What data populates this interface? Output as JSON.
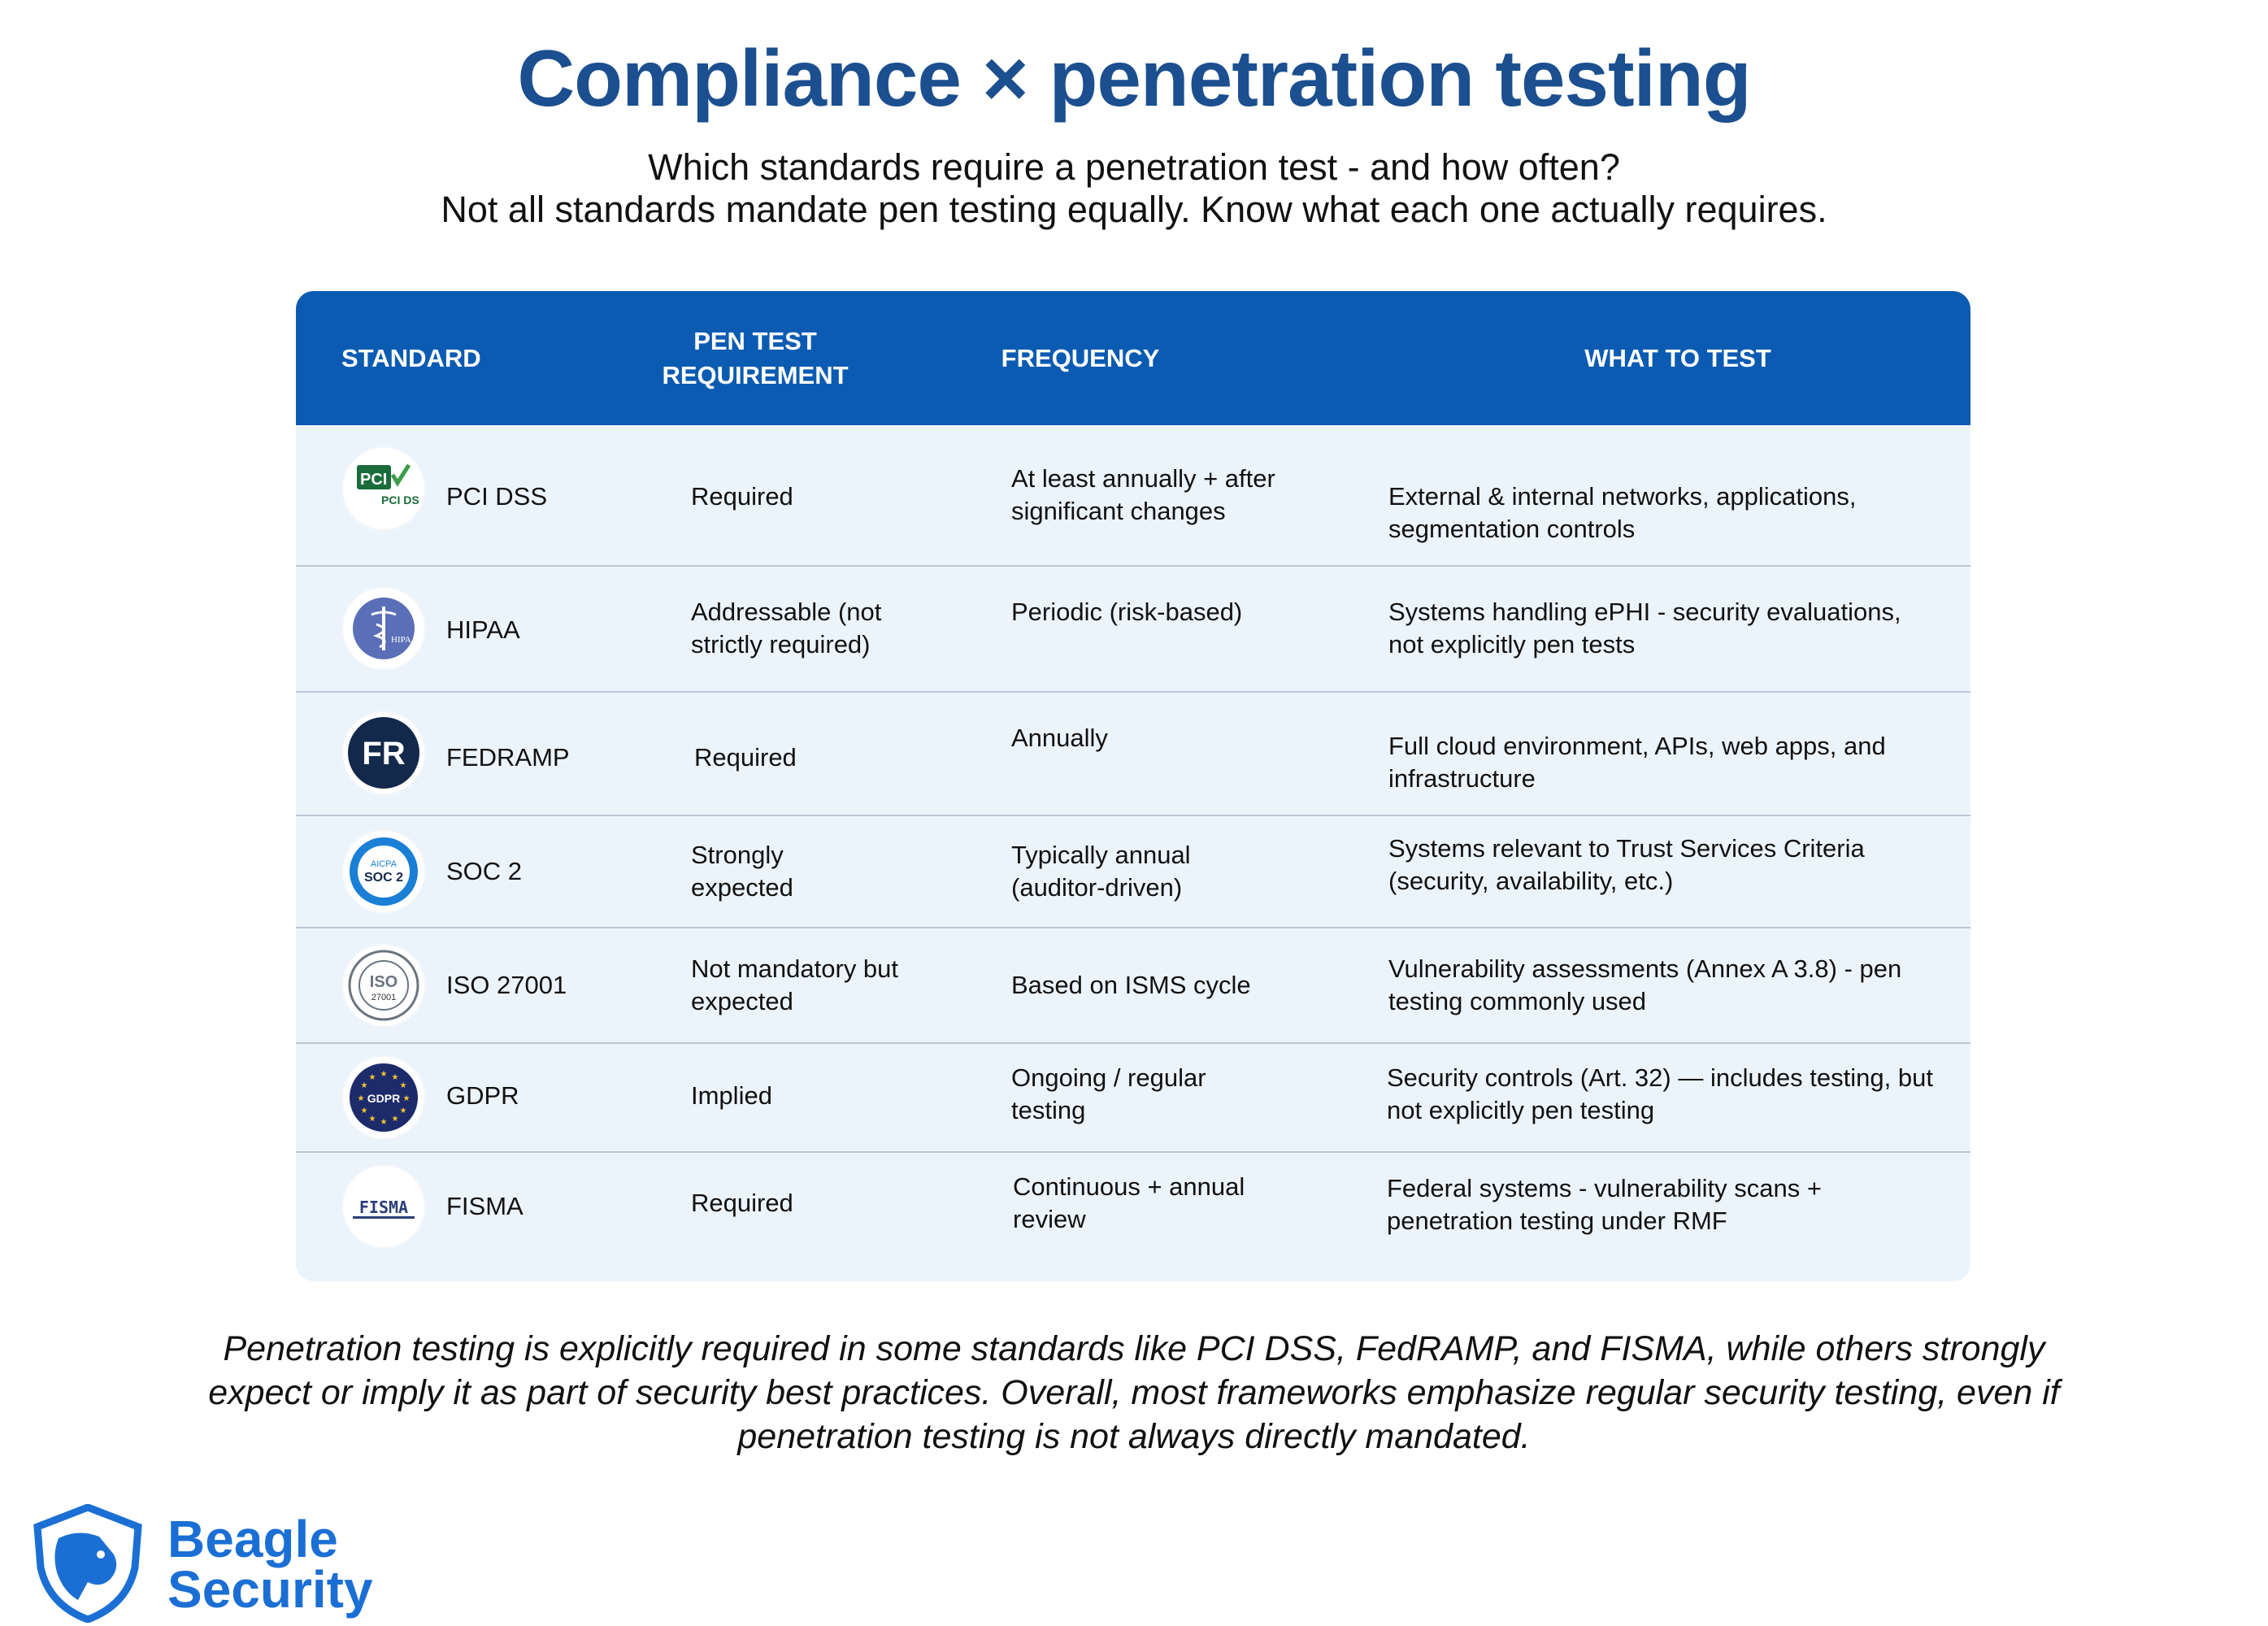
{
  "header": {
    "title": "Compliance × penetration testing",
    "subtitle_line1": "Which standards require a penetration test - and how often?",
    "subtitle_line2": "Not all standards mandate pen testing equally. Know what each one actually requires."
  },
  "table": {
    "columns": {
      "standard": "STANDARD",
      "requirement_line1": "PEN TEST",
      "requirement_line2": "REQUIREMENT",
      "frequency": "FREQUENCY",
      "what_to_test": "WHAT TO TEST"
    },
    "rows": [
      {
        "logo_icon": "pci-dss-logo-icon",
        "logo_text": "PCI DSS",
        "standard": "PCI DSS",
        "requirement": "Required",
        "frequency": "At least annually + after significant changes",
        "what_to_test": "External & internal networks, applications, segmentation controls"
      },
      {
        "logo_icon": "hipaa-caduceus-logo-icon",
        "logo_text": "HIPAA",
        "standard": "HIPAA",
        "requirement": "Addressable (not strictly required)",
        "frequency": "Periodic (risk-based)",
        "what_to_test": "Systems handling ePHI - security evaluations, not explicitly pen tests"
      },
      {
        "logo_icon": "fedramp-logo-icon",
        "logo_text": "FR",
        "standard": "FEDRAMP",
        "requirement": "Required",
        "frequency": "Annually",
        "what_to_test": "Full cloud environment, APIs, web apps, and infrastructure"
      },
      {
        "logo_icon": "aicpa-soc2-logo-icon",
        "logo_text": "AICPA SOC 2",
        "standard": "SOC 2",
        "requirement": "Strongly expected",
        "frequency": "Typically annual (auditor-driven)",
        "what_to_test": "Systems relevant to Trust Services Criteria (security, availability, etc.)"
      },
      {
        "logo_icon": "iso-27001-seal-icon",
        "logo_text": "ISO 27001",
        "standard": "ISO 27001",
        "requirement": "Not mandatory but expected",
        "frequency": "Based on ISMS cycle",
        "what_to_test": "Vulnerability assessments (Annex A 3.8) - pen testing commonly used"
      },
      {
        "logo_icon": "gdpr-eu-stars-logo-icon",
        "logo_text": "GDPR",
        "standard": "GDPR",
        "requirement": "Implied",
        "frequency": "Ongoing / regular testing",
        "what_to_test": "Security controls (Art. 32) — includes testing, but not explicitly pen testing"
      },
      {
        "logo_icon": "fisma-logo-icon",
        "logo_text": "FISMA",
        "standard": "FISMA",
        "requirement": "Required",
        "frequency": "Continuous + annual review",
        "what_to_test": "Federal systems - vulnerability scans + penetration testing under RMF"
      }
    ]
  },
  "footnote": "Penetration testing is explicitly required in some standards like PCI DSS, FedRAMP, and FISMA, while others strongly expect or imply it as part of security best practices. Overall, most frameworks emphasize regular security testing, even if penetration testing is not always directly mandated.",
  "brand": {
    "name_line1": "Beagle",
    "name_line2": "Security",
    "icon": "beagle-shield-logo-icon"
  },
  "colors": {
    "title": "#1c4f8f",
    "header_bg": "#0b5bb2",
    "table_bg": "#ecf4fb",
    "brand": "#1b6fd4"
  }
}
